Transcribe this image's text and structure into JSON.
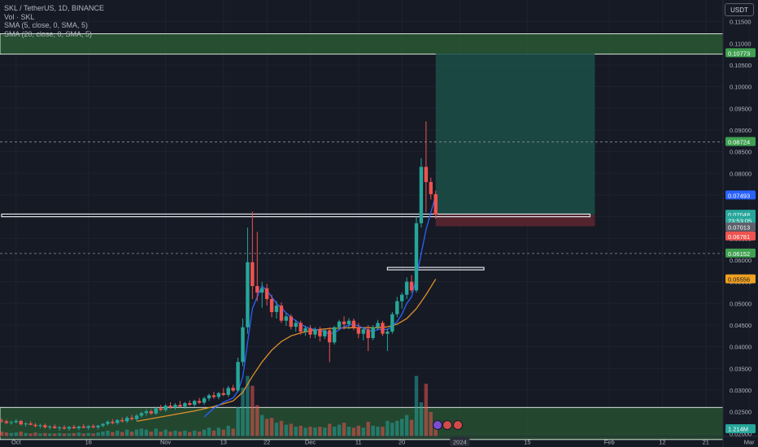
{
  "header": {
    "symbol_line": "SKL / TetherUS, 1D, BINANCE",
    "indicators": [
      "Vol · SKL",
      "SMA (5, close, 0, SMA, 5)",
      "SMA (20, close, 0, SMA, 5)"
    ],
    "currency_button": "USDT"
  },
  "colors": {
    "background": "#161a25",
    "up": "#26a69a",
    "down": "#ef5350",
    "sma5": "#2962ff",
    "sma20": "#e0912a",
    "zone": "#3d7a44",
    "target": "#1b5047",
    "stop": "#5a2630"
  },
  "chart_data": {
    "type": "candlestick",
    "symbol": "SKL/USDT",
    "timeframe": "1D",
    "ylim": [
      0.0185,
      0.1175
    ],
    "y_ticks": [
      "0.02000",
      "0.02500",
      "0.03000",
      "0.03500",
      "0.04000",
      "0.04500",
      "0.05000",
      "0.05500",
      "0.06000",
      "0.06500",
      "0.07000",
      "0.07500",
      "0.08000",
      "0.08500",
      "0.09000",
      "0.09500",
      "0.10000",
      "0.10500",
      "0.11000",
      "0.11500"
    ],
    "x_ticks": [
      {
        "label": "Oct",
        "date": "2023-10-01"
      },
      {
        "label": "16",
        "date": "2023-10-16"
      },
      {
        "label": "Nov",
        "date": "2023-11-01"
      },
      {
        "label": "13",
        "date": "2023-11-13"
      },
      {
        "label": "22",
        "date": "2023-11-22"
      },
      {
        "label": "Dec",
        "date": "2023-12-01"
      },
      {
        "label": "11",
        "date": "2023-12-11"
      },
      {
        "label": "20",
        "date": "2023-12-20"
      },
      {
        "label": "2024",
        "date": "2024-01-01"
      },
      {
        "label": "15",
        "date": "2024-01-15"
      },
      {
        "label": "Feb",
        "date": "2024-02-01"
      },
      {
        "label": "12",
        "date": "2024-02-12"
      },
      {
        "label": "21",
        "date": "2024-02-21"
      },
      {
        "label": "Mar",
        "date": "2024-03-01"
      }
    ],
    "price_labels": [
      {
        "value": "0.10773",
        "price": 0.10773,
        "color": "#3fa050"
      },
      {
        "value": "0.08724",
        "price": 0.08724,
        "color": "#3fa050"
      },
      {
        "value": "0.07493",
        "price": 0.07493,
        "color": "#2962ff"
      },
      {
        "value": "0.07048",
        "price": 0.07048,
        "color": "#26a69a"
      },
      {
        "value": "23:53:05",
        "price": 0.06905,
        "color": "#26a69a"
      },
      {
        "value": "0.07013",
        "price": 0.07013,
        "color": "#5d606b",
        "display_price": 0.06755
      },
      {
        "value": "0.06781",
        "price": 0.06781,
        "color": "#ef5350",
        "display_price": 0.06545
      },
      {
        "value": "0.06152",
        "price": 0.06152,
        "color": "#3fa050"
      },
      {
        "value": "0.05556",
        "price": 0.05556,
        "color": "#f0a020"
      }
    ],
    "volume_label": "1.214M",
    "candles_start": "2023-09-28",
    "candles": [
      [
        0.023,
        0.0235,
        0.0225,
        0.0228,
        0.5
      ],
      [
        0.0228,
        0.0232,
        0.0222,
        0.0224,
        0.4
      ],
      [
        0.0224,
        0.023,
        0.022,
        0.0226,
        0.35
      ],
      [
        0.0226,
        0.0233,
        0.0223,
        0.0229,
        0.4
      ],
      [
        0.0229,
        0.0231,
        0.0218,
        0.0221,
        0.5
      ],
      [
        0.0221,
        0.0226,
        0.0216,
        0.0223,
        0.35
      ],
      [
        0.0223,
        0.0228,
        0.0219,
        0.022,
        0.3
      ],
      [
        0.022,
        0.0224,
        0.0214,
        0.0217,
        0.4
      ],
      [
        0.0217,
        0.0222,
        0.0212,
        0.0219,
        0.3
      ],
      [
        0.0219,
        0.0223,
        0.0211,
        0.0214,
        0.35
      ],
      [
        0.0214,
        0.0219,
        0.0209,
        0.0216,
        0.3
      ],
      [
        0.0216,
        0.0221,
        0.0211,
        0.0212,
        0.3
      ],
      [
        0.0212,
        0.0217,
        0.0206,
        0.0214,
        0.35
      ],
      [
        0.0214,
        0.0219,
        0.0209,
        0.0211,
        0.3
      ],
      [
        0.0211,
        0.0217,
        0.0206,
        0.0215,
        0.3
      ],
      [
        0.0215,
        0.022,
        0.021,
        0.0212,
        0.35
      ],
      [
        0.0212,
        0.0218,
        0.0207,
        0.0216,
        0.4
      ],
      [
        0.0216,
        0.0222,
        0.0212,
        0.0213,
        0.3
      ],
      [
        0.0213,
        0.0219,
        0.0208,
        0.0217,
        0.35
      ],
      [
        0.0217,
        0.0222,
        0.0212,
        0.0214,
        0.3
      ],
      [
        0.0214,
        0.022,
        0.0209,
        0.0218,
        0.4
      ],
      [
        0.0218,
        0.0224,
        0.0214,
        0.0222,
        0.5
      ],
      [
        0.0222,
        0.023,
        0.0218,
        0.0227,
        0.6
      ],
      [
        0.0227,
        0.0233,
        0.0221,
        0.0224,
        0.45
      ],
      [
        0.0224,
        0.0233,
        0.022,
        0.0231,
        0.6
      ],
      [
        0.0231,
        0.0237,
        0.0225,
        0.0228,
        0.45
      ],
      [
        0.0228,
        0.024,
        0.0224,
        0.0236,
        0.7
      ],
      [
        0.0236,
        0.0243,
        0.023,
        0.0233,
        0.5
      ],
      [
        0.0233,
        0.0245,
        0.0229,
        0.0241,
        0.7
      ],
      [
        0.0241,
        0.025,
        0.0236,
        0.0247,
        0.8
      ],
      [
        0.0247,
        0.0256,
        0.0241,
        0.0251,
        0.7
      ],
      [
        0.0251,
        0.0256,
        0.0243,
        0.0246,
        0.5
      ],
      [
        0.0246,
        0.0261,
        0.0243,
        0.0258,
        0.8
      ],
      [
        0.0258,
        0.0266,
        0.0252,
        0.0254,
        0.5
      ],
      [
        0.0254,
        0.0268,
        0.025,
        0.0264,
        0.7
      ],
      [
        0.0264,
        0.0272,
        0.0257,
        0.026,
        0.5
      ],
      [
        0.026,
        0.027,
        0.0255,
        0.0266,
        0.6
      ],
      [
        0.0266,
        0.0275,
        0.026,
        0.0262,
        0.5
      ],
      [
        0.0262,
        0.0273,
        0.0257,
        0.027,
        0.6
      ],
      [
        0.027,
        0.0276,
        0.0264,
        0.0266,
        0.45
      ],
      [
        0.0266,
        0.0278,
        0.0262,
        0.0275,
        0.6
      ],
      [
        0.0275,
        0.0282,
        0.0268,
        0.0271,
        0.5
      ],
      [
        0.0271,
        0.0285,
        0.0266,
        0.0281,
        0.7
      ],
      [
        0.0281,
        0.0292,
        0.0275,
        0.0288,
        0.9
      ],
      [
        0.0288,
        0.0296,
        0.028,
        0.0284,
        0.6
      ],
      [
        0.0284,
        0.0296,
        0.0279,
        0.0293,
        0.9
      ],
      [
        0.0293,
        0.0305,
        0.0286,
        0.0289,
        0.7
      ],
      [
        0.0289,
        0.031,
        0.0284,
        0.0305,
        1.1
      ],
      [
        0.0305,
        0.0312,
        0.0296,
        0.0299,
        0.8
      ],
      [
        0.0299,
        0.0375,
        0.0295,
        0.0365,
        3.0
      ],
      [
        0.0365,
        0.0465,
        0.0355,
        0.0445,
        5.0
      ],
      [
        0.0445,
        0.0675,
        0.043,
        0.0595,
        6.2
      ],
      [
        0.0595,
        0.0712,
        0.051,
        0.054,
        5.2
      ],
      [
        0.054,
        0.0665,
        0.0505,
        0.0525,
        3.2
      ],
      [
        0.0525,
        0.055,
        0.049,
        0.0535,
        2.2
      ],
      [
        0.0535,
        0.0545,
        0.0495,
        0.051,
        1.8
      ],
      [
        0.051,
        0.052,
        0.0468,
        0.048,
        1.9
      ],
      [
        0.048,
        0.0505,
        0.0465,
        0.0495,
        1.4
      ],
      [
        0.0495,
        0.0502,
        0.0455,
        0.046,
        1.6
      ],
      [
        0.046,
        0.0478,
        0.0448,
        0.047,
        1.2
      ],
      [
        0.047,
        0.0475,
        0.044,
        0.0446,
        1.3
      ],
      [
        0.0446,
        0.0462,
        0.0435,
        0.0455,
        1.0
      ],
      [
        0.0455,
        0.046,
        0.0428,
        0.0435,
        1.1
      ],
      [
        0.0435,
        0.0448,
        0.0425,
        0.0443,
        0.9
      ],
      [
        0.0443,
        0.045,
        0.042,
        0.0428,
        1.0
      ],
      [
        0.0428,
        0.0445,
        0.042,
        0.044,
        0.9
      ],
      [
        0.044,
        0.0446,
        0.0412,
        0.0424,
        1.0
      ],
      [
        0.0424,
        0.0441,
        0.0418,
        0.0438,
        0.9
      ],
      [
        0.0438,
        0.0445,
        0.0365,
        0.041,
        1.3
      ],
      [
        0.041,
        0.0448,
        0.0405,
        0.0445,
        1.0
      ],
      [
        0.0445,
        0.0462,
        0.0438,
        0.0458,
        1.2
      ],
      [
        0.0458,
        0.047,
        0.044,
        0.0452,
        1.4
      ],
      [
        0.0452,
        0.0466,
        0.044,
        0.046,
        1.0
      ],
      [
        0.046,
        0.0465,
        0.0438,
        0.0445,
        0.9
      ],
      [
        0.0445,
        0.0455,
        0.042,
        0.043,
        1.1
      ],
      [
        0.043,
        0.0445,
        0.0415,
        0.044,
        0.9
      ],
      [
        0.044,
        0.045,
        0.039,
        0.042,
        1.5
      ],
      [
        0.042,
        0.045,
        0.0415,
        0.0445,
        1.1
      ],
      [
        0.0445,
        0.0462,
        0.0438,
        0.0455,
        1.0
      ],
      [
        0.0455,
        0.046,
        0.0425,
        0.043,
        1.0
      ],
      [
        0.043,
        0.0442,
        0.039,
        0.0435,
        1.6
      ],
      [
        0.0435,
        0.048,
        0.043,
        0.0475,
        1.4
      ],
      [
        0.0475,
        0.0515,
        0.0468,
        0.0505,
        1.6
      ],
      [
        0.0505,
        0.0525,
        0.0488,
        0.052,
        1.8
      ],
      [
        0.052,
        0.056,
        0.051,
        0.055,
        2.2
      ],
      [
        0.055,
        0.0565,
        0.0525,
        0.053,
        1.7
      ],
      [
        0.053,
        0.07,
        0.0525,
        0.0685,
        6.2
      ],
      [
        0.0685,
        0.0835,
        0.0675,
        0.0815,
        3.5
      ],
      [
        0.0815,
        0.092,
        0.071,
        0.078,
        5.4
      ],
      [
        0.078,
        0.079,
        0.074,
        0.0752,
        2.5
      ],
      [
        0.0752,
        0.076,
        0.0695,
        0.0705,
        1.214
      ]
    ],
    "sma5": [
      [
        42,
        0.0238
      ],
      [
        44,
        0.0258
      ],
      [
        46,
        0.0272
      ],
      [
        48,
        0.0282
      ],
      [
        49,
        0.0298
      ],
      [
        50,
        0.033
      ],
      [
        51,
        0.041
      ],
      [
        52,
        0.0488
      ],
      [
        53,
        0.0515
      ],
      [
        54,
        0.054
      ],
      [
        55,
        0.053
      ],
      [
        56,
        0.0515
      ],
      [
        57,
        0.05
      ],
      [
        58,
        0.049
      ],
      [
        59,
        0.0478
      ],
      [
        60,
        0.0468
      ],
      [
        61,
        0.046
      ],
      [
        62,
        0.0452
      ],
      [
        63,
        0.0446
      ],
      [
        64,
        0.0442
      ],
      [
        65,
        0.044
      ],
      [
        66,
        0.0438
      ],
      [
        67,
        0.0434
      ],
      [
        68,
        0.043
      ],
      [
        69,
        0.0432
      ],
      [
        70,
        0.044
      ],
      [
        71,
        0.0446
      ],
      [
        72,
        0.045
      ],
      [
        73,
        0.0452
      ],
      [
        74,
        0.0448
      ],
      [
        75,
        0.0443
      ],
      [
        76,
        0.0438
      ],
      [
        77,
        0.0435
      ],
      [
        78,
        0.044
      ],
      [
        79,
        0.044
      ],
      [
        80,
        0.044
      ],
      [
        81,
        0.0447
      ],
      [
        82,
        0.0458
      ],
      [
        83,
        0.0475
      ],
      [
        84,
        0.05
      ],
      [
        85,
        0.0515
      ],
      [
        86,
        0.056
      ],
      [
        87,
        0.0615
      ],
      [
        88,
        0.067
      ],
      [
        89,
        0.071
      ],
      [
        90,
        0.0749
      ]
    ],
    "sma20": [
      [
        28,
        0.0228
      ],
      [
        34,
        0.024
      ],
      [
        40,
        0.0252
      ],
      [
        44,
        0.0262
      ],
      [
        48,
        0.0275
      ],
      [
        50,
        0.0295
      ],
      [
        52,
        0.0332
      ],
      [
        54,
        0.0365
      ],
      [
        56,
        0.0392
      ],
      [
        58,
        0.0412
      ],
      [
        60,
        0.0425
      ],
      [
        62,
        0.0432
      ],
      [
        64,
        0.0437
      ],
      [
        66,
        0.044
      ],
      [
        68,
        0.0442
      ],
      [
        70,
        0.0443
      ],
      [
        72,
        0.0444
      ],
      [
        74,
        0.0444
      ],
      [
        76,
        0.0444
      ],
      [
        78,
        0.0444
      ],
      [
        80,
        0.0446
      ],
      [
        82,
        0.0452
      ],
      [
        84,
        0.0465
      ],
      [
        86,
        0.0488
      ],
      [
        88,
        0.052
      ],
      [
        90,
        0.0556
      ]
    ],
    "zones": [
      {
        "name": "supply-zone",
        "from": 0.1075,
        "to": 0.1122,
        "color": "#2f6a36"
      },
      {
        "name": "demand-zone",
        "from": 0.0186,
        "to": 0.026,
        "color": "#2b5d34"
      }
    ],
    "lines": [
      {
        "name": "resistance-box-upper",
        "kind": "box",
        "x0": 0,
        "x1": 122,
        "from": 0.07,
        "to": 0.0706
      },
      {
        "name": "resistance-box-lower",
        "kind": "box",
        "x0": 80,
        "x1": 100,
        "from": 0.0578,
        "to": 0.0583
      },
      {
        "name": "dashed-level-upper",
        "kind": "dashed",
        "price": 0.08724
      },
      {
        "name": "dashed-level-lower",
        "kind": "dashed",
        "price": 0.06152
      }
    ],
    "position": {
      "entry": 0.07048,
      "target": 0.10773,
      "stop": 0.0678,
      "x0": 90,
      "x1": 123
    }
  }
}
